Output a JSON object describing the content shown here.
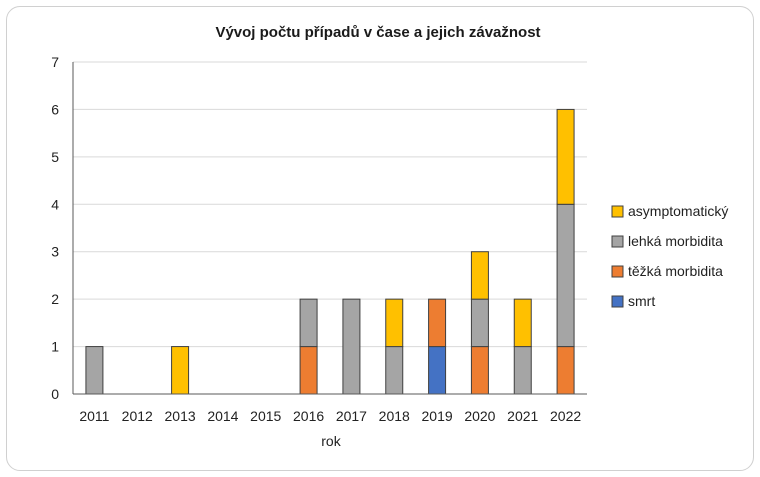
{
  "chart_data": {
    "type": "bar",
    "stacked": true,
    "title": "Vývoj počtu případů v čase a jejich závažnost",
    "xlabel": "rok",
    "ylabel": "",
    "ylim": [
      0,
      7
    ],
    "yticks": [
      0,
      1,
      2,
      3,
      4,
      5,
      6,
      7
    ],
    "categories": [
      "2011",
      "2012",
      "2013",
      "2014",
      "2015",
      "2016",
      "2017",
      "2018",
      "2019",
      "2020",
      "2021",
      "2022"
    ],
    "series": [
      {
        "name": "smrt",
        "color": "#4472C4",
        "values": [
          0,
          0,
          0,
          0,
          0,
          0,
          0,
          0,
          1,
          0,
          0,
          0
        ]
      },
      {
        "name": "těžká morbidita",
        "color": "#ED7D31",
        "values": [
          0,
          0,
          0,
          0,
          0,
          1,
          0,
          0,
          1,
          1,
          0,
          1
        ]
      },
      {
        "name": "lehká morbidita",
        "color": "#A5A5A5",
        "values": [
          1,
          0,
          0,
          0,
          0,
          1,
          2,
          1,
          0,
          1,
          1,
          3
        ]
      },
      {
        "name": "asymptomatický",
        "color": "#FFC000",
        "values": [
          0,
          0,
          1,
          0,
          0,
          0,
          0,
          1,
          0,
          1,
          1,
          2
        ]
      }
    ],
    "legend_order": [
      "asymptomatický",
      "lehká morbidita",
      "těžká morbidita",
      "smrt"
    ],
    "legend_position": "right",
    "grid": true
  }
}
